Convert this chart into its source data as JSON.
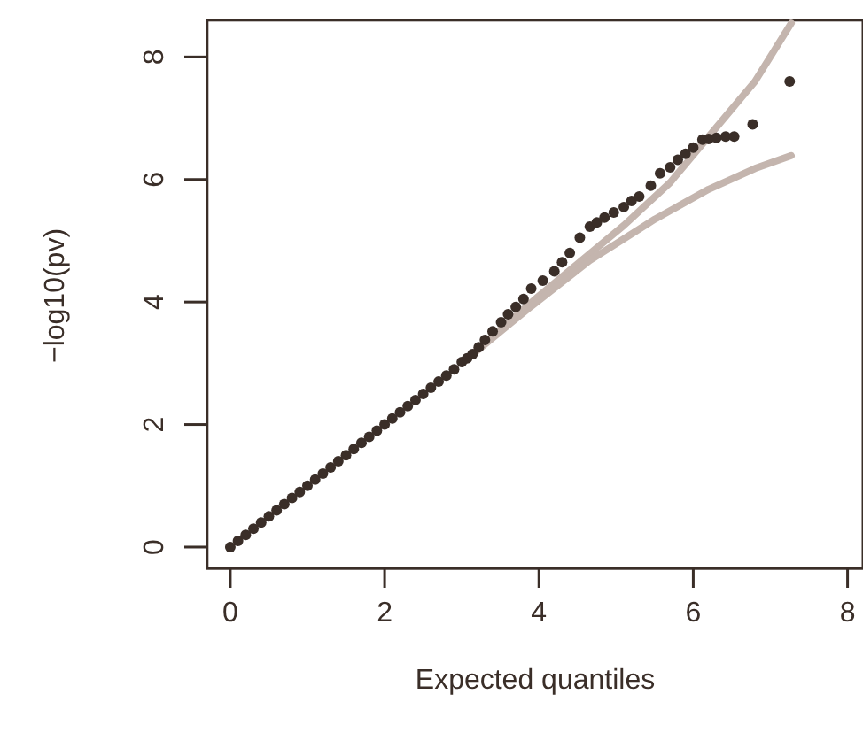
{
  "chart_data": {
    "type": "scatter",
    "xlabel": "Expected quantiles",
    "ylabel": "−log10(pv)",
    "xlim": [
      -0.3,
      8.2
    ],
    "ylim": [
      -0.35,
      8.6
    ],
    "xticks": [
      0,
      2,
      4,
      6,
      8
    ],
    "yticks": [
      0,
      2,
      4,
      6,
      8
    ],
    "grid": false,
    "series": [
      {
        "type": "line",
        "color": "#c4b5ae",
        "x": [
          3,
          4,
          5.1,
          5.7,
          6.24,
          6.8,
          7.27
        ],
        "values": [
          3,
          4.1,
          5.25,
          5.95,
          6.76,
          7.6,
          8.55
        ]
      },
      {
        "type": "line",
        "color": "#c4b5ae",
        "x": [
          3,
          3.9,
          4.66,
          5.5,
          6.2,
          6.8,
          7.27
        ],
        "values": [
          3,
          3.93,
          4.68,
          5.35,
          5.84,
          6.18,
          6.39
        ]
      },
      {
        "marker": "circle",
        "color": "#3a2e28",
        "x": [
          0,
          0.1,
          0.2,
          0.3,
          0.4,
          0.5,
          0.6,
          0.7,
          0.8,
          0.9,
          1,
          1.1,
          1.2,
          1.3,
          1.4,
          1.5,
          1.6,
          1.7,
          1.8,
          1.9,
          2,
          2.1,
          2.2,
          2.3,
          2.4,
          2.5,
          2.6,
          2.7,
          2.8,
          2.9,
          3,
          3.07,
          3.14,
          3.22,
          3.3,
          3.4,
          3.51,
          3.6,
          3.7,
          3.8,
          3.9,
          4.05,
          4.2,
          4.3,
          4.4,
          4.53,
          4.66,
          4.75,
          4.85,
          4.97,
          5.1,
          5.2,
          5.3,
          5.45,
          5.57,
          5.7,
          5.8,
          5.9,
          6,
          6.12,
          6.2,
          6.3,
          6.42,
          6.53,
          6.77,
          7.25
        ],
        "values": [
          0,
          0.1,
          0.2,
          0.3,
          0.4,
          0.5,
          0.6,
          0.7,
          0.8,
          0.9,
          1,
          1.1,
          1.2,
          1.3,
          1.4,
          1.5,
          1.6,
          1.7,
          1.8,
          1.9,
          2,
          2.1,
          2.2,
          2.3,
          2.4,
          2.5,
          2.6,
          2.7,
          2.8,
          2.9,
          3.02,
          3.08,
          3.15,
          3.26,
          3.38,
          3.52,
          3.67,
          3.8,
          3.92,
          4.05,
          4.22,
          4.35,
          4.5,
          4.65,
          4.8,
          5.05,
          5.23,
          5.3,
          5.38,
          5.46,
          5.55,
          5.65,
          5.72,
          5.9,
          6.1,
          6.2,
          6.32,
          6.42,
          6.52,
          6.65,
          6.66,
          6.68,
          6.7,
          6.7,
          6.9,
          7.6
        ]
      }
    ]
  }
}
